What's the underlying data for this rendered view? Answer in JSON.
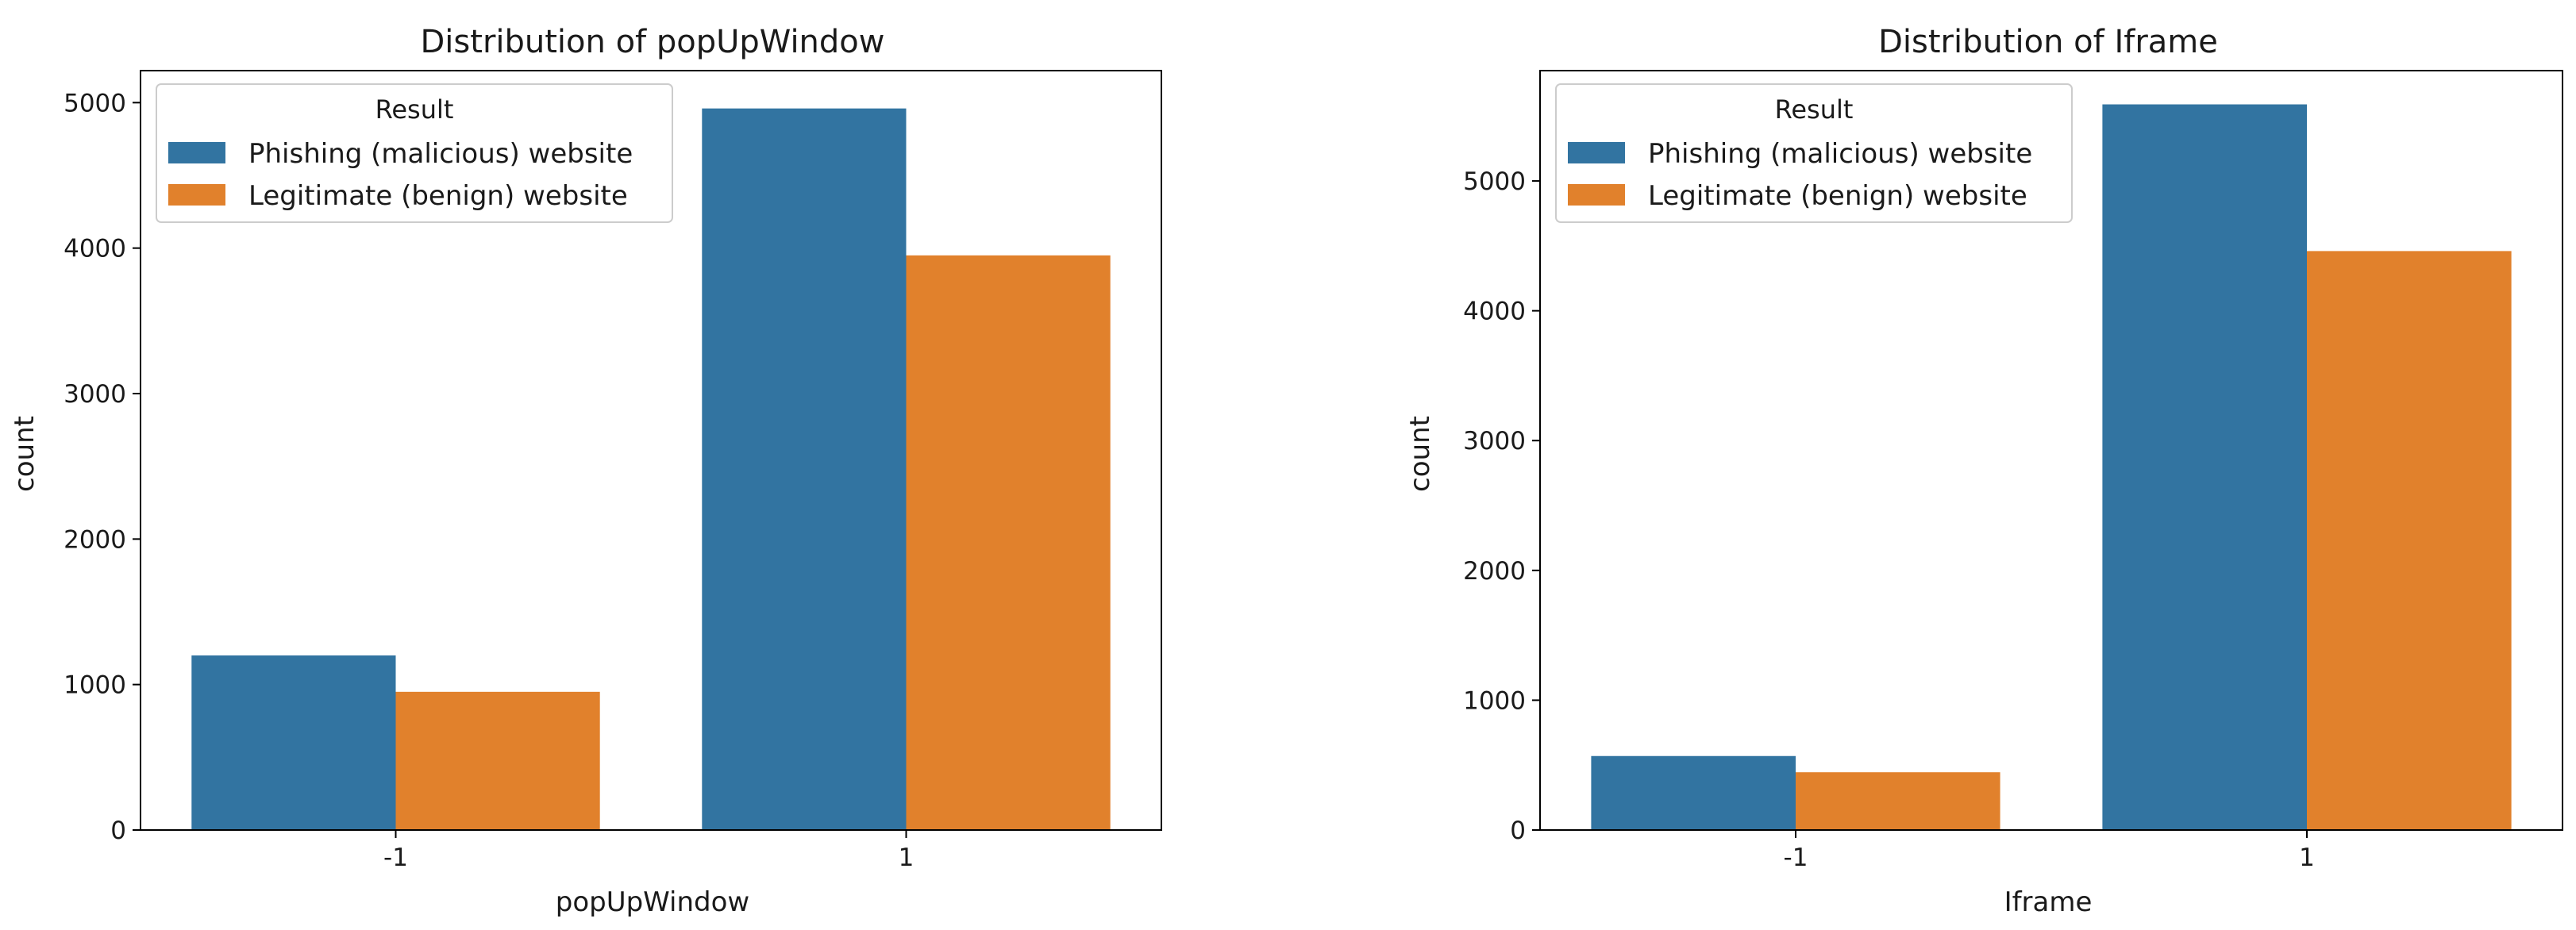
{
  "chart_data": [
    {
      "type": "bar",
      "title": "Distribution of popUpWindow",
      "xlabel": "popUpWindow",
      "ylabel": "count",
      "categories": [
        "-1",
        "1"
      ],
      "ylim": [
        0,
        5220
      ],
      "yticks": [
        0,
        1000,
        2000,
        3000,
        4000,
        5000
      ],
      "grid": false,
      "legend": {
        "title": "Result",
        "placement": "top-left"
      },
      "series": [
        {
          "name": "Phishing (malicious) website",
          "color": "#3274a1",
          "values": [
            1200,
            4960
          ]
        },
        {
          "name": "Legitimate (benign) website",
          "color": "#e1812c",
          "values": [
            950,
            3950
          ]
        }
      ]
    },
    {
      "type": "bar",
      "title": "Distribution of Iframe",
      "xlabel": "Iframe",
      "ylabel": "count",
      "categories": [
        "-1",
        "1"
      ],
      "ylim": [
        0,
        5850
      ],
      "yticks": [
        0,
        1000,
        2000,
        3000,
        4000,
        5000
      ],
      "grid": false,
      "legend": {
        "title": "Result",
        "placement": "top-left"
      },
      "series": [
        {
          "name": "Phishing (malicious) website",
          "color": "#3274a1",
          "values": [
            570,
            5590
          ]
        },
        {
          "name": "Legitimate (benign) website",
          "color": "#e1812c",
          "values": [
            445,
            4460
          ]
        }
      ]
    }
  ]
}
